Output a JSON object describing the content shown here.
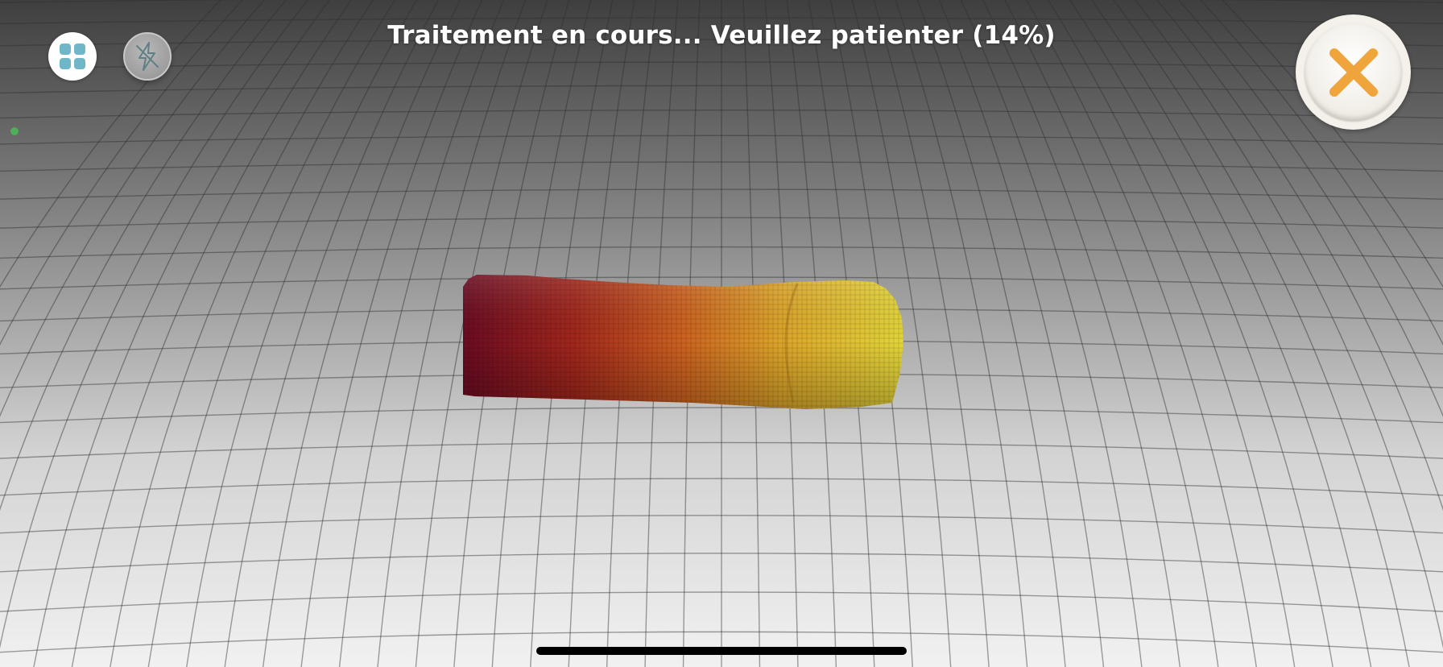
{
  "status": {
    "message": "Traitement en cours... Veuillez patienter (14%)",
    "progress_percent": 14
  },
  "toolbar": {
    "grid_icon": "grid-icon",
    "flash_icon": "flash-off-icon",
    "close_icon": "close-icon"
  },
  "colors": {
    "grid_accent": "#6fb6c9",
    "close_accent": "#f0a53c",
    "tracking_indicator": "#4fae57",
    "scan_start": "#6e0a1e",
    "scan_mid": "#c9571a",
    "scan_end": "#e2d234"
  }
}
